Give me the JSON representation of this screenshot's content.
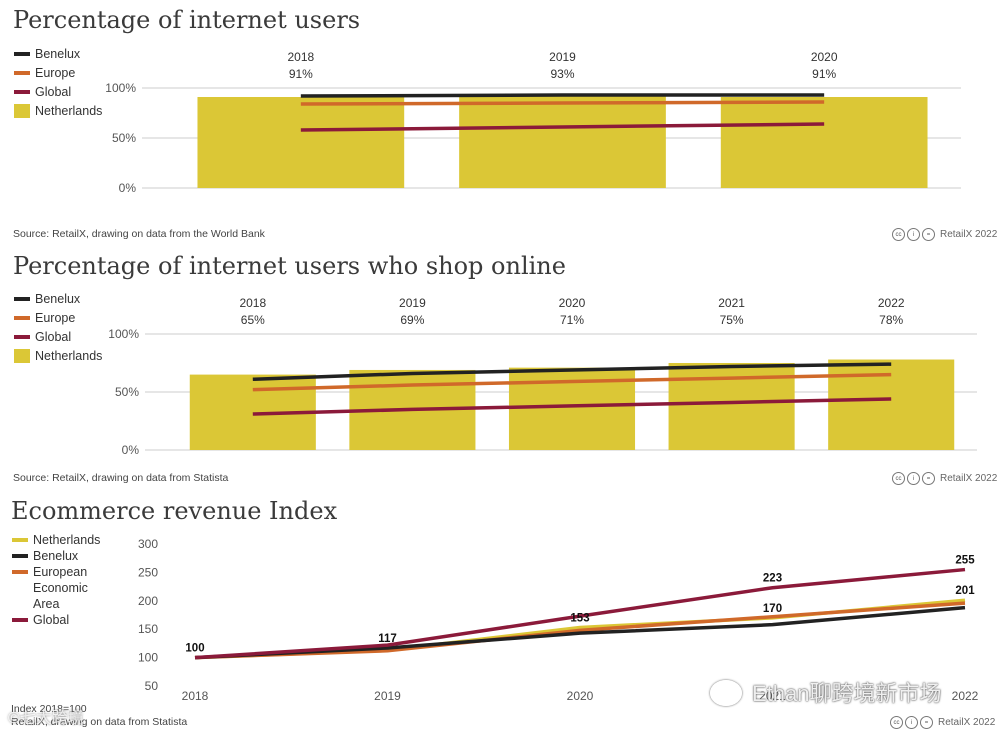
{
  "colors": {
    "benelux": "#222222",
    "europe": "#d0692a",
    "global": "#8b1a3a",
    "netherlands": "#dbc736",
    "grid": "#cccccc",
    "axis_text": "#555555"
  },
  "panel1": {
    "title": "Percentage of internet users",
    "legend": [
      "Benelux",
      "Europe",
      "Global",
      "Netherlands"
    ],
    "source": "Source: RetailX, drawing on data from the World Bank",
    "credit": "RetailX 2022"
  },
  "panel2": {
    "title": "Percentage of internet users who shop online",
    "legend": [
      "Benelux",
      "Europe",
      "Global",
      "Netherlands"
    ],
    "source": "Source: RetailX, drawing on data from Statista",
    "credit": "RetailX 2022"
  },
  "panel3": {
    "title": "Ecommerce revenue Index",
    "legend": [
      "Netherlands",
      "Benelux",
      "European Economic Area",
      "Global"
    ],
    "note": "Index 2018=100",
    "source": "RetailX, drawing on data from Statista",
    "credit": "RetailX 2022"
  },
  "watermark": {
    "main": "Ethan聊跨境新市场",
    "small": "©七大跨境"
  },
  "chart_data": [
    {
      "type": "bar",
      "title": "Percentage of internet users",
      "categories": [
        "2018",
        "2019",
        "2020"
      ],
      "bar_labels": [
        "91%",
        "93%",
        "91%"
      ],
      "ylim": [
        0,
        100
      ],
      "yticks": [
        0,
        50,
        100
      ],
      "ytick_labels": [
        "0%",
        "50%",
        "100%"
      ],
      "series": [
        {
          "name": "Netherlands",
          "kind": "bar",
          "values": [
            91,
            93,
            91
          ]
        },
        {
          "name": "Benelux",
          "kind": "line",
          "values": [
            92,
            93,
            93
          ]
        },
        {
          "name": "Europe",
          "kind": "line",
          "values": [
            84,
            85,
            86
          ]
        },
        {
          "name": "Global",
          "kind": "line",
          "values": [
            58,
            61,
            64
          ]
        }
      ],
      "legend_position": "top-left"
    },
    {
      "type": "bar",
      "title": "Percentage of internet users who shop online",
      "categories": [
        "2018",
        "2019",
        "2020",
        "2021",
        "2022"
      ],
      "bar_labels": [
        "65%",
        "69%",
        "71%",
        "75%",
        "78%"
      ],
      "ylim": [
        0,
        100
      ],
      "yticks": [
        0,
        50,
        100
      ],
      "ytick_labels": [
        "0%",
        "50%",
        "100%"
      ],
      "series": [
        {
          "name": "Netherlands",
          "kind": "bar",
          "values": [
            65,
            69,
            71,
            75,
            78
          ]
        },
        {
          "name": "Benelux",
          "kind": "line",
          "values": [
            61,
            66,
            69,
            72,
            74
          ]
        },
        {
          "name": "Europe",
          "kind": "line",
          "values": [
            52,
            56,
            59,
            62,
            65
          ]
        },
        {
          "name": "Global",
          "kind": "line",
          "values": [
            31,
            35,
            38,
            41,
            44
          ]
        }
      ],
      "legend_position": "top-left"
    },
    {
      "type": "line",
      "title": "Ecommerce revenue Index",
      "categories": [
        "2018",
        "2019",
        "2020",
        "2021",
        "2022"
      ],
      "ylim": [
        50,
        300
      ],
      "yticks": [
        50,
        100,
        150,
        200,
        250,
        300
      ],
      "series": [
        {
          "name": "Netherlands",
          "values": [
            100,
            113,
            153,
            170,
            201
          ]
        },
        {
          "name": "Benelux",
          "values": [
            100,
            117,
            143,
            158,
            188
          ]
        },
        {
          "name": "European Economic Area",
          "values": [
            100,
            112,
            148,
            172,
            196
          ]
        },
        {
          "name": "Global",
          "values": [
            100,
            122,
            173,
            223,
            255
          ]
        }
      ],
      "data_labels": [
        {
          "category": "2018",
          "value": 100,
          "text": "100"
        },
        {
          "category": "2019",
          "value": 117,
          "text": "117"
        },
        {
          "category": "2020",
          "value": 153,
          "text": "153"
        },
        {
          "category": "2021",
          "value": 223,
          "text": "223"
        },
        {
          "category": "2021",
          "value": 170,
          "text": "170"
        },
        {
          "category": "2022",
          "value": 255,
          "text": "255"
        },
        {
          "category": "2022",
          "value": 201,
          "text": "201"
        }
      ],
      "legend_position": "top-left"
    }
  ]
}
